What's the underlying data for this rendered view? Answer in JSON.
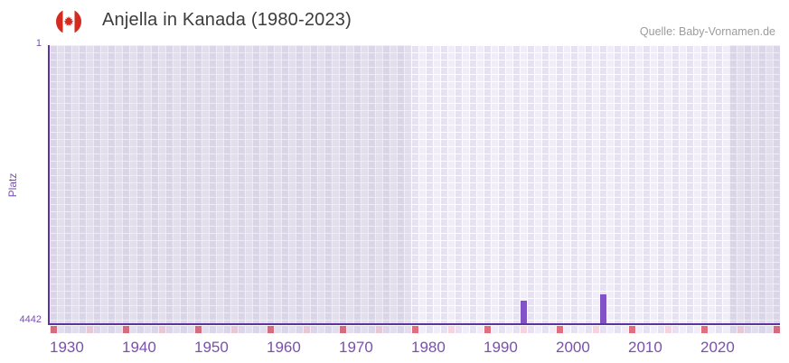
{
  "header": {
    "title": "Anjella in Kanada (1980-2023)",
    "flag_icon": "canada-flag",
    "source": "Quelle: Baby-Vornamen.de"
  },
  "chart_data": {
    "type": "bar",
    "title": "Anjella in Kanada (1980-2023)",
    "xlabel": "",
    "ylabel": "Platz",
    "y_axis": {
      "top_label": "1",
      "bottom_label": "4442",
      "min": 1,
      "max": 4442,
      "inverted": true
    },
    "x_axis": {
      "start_year": 1930,
      "end_year": 2030,
      "tick_years": [
        1930,
        1940,
        1950,
        1960,
        1970,
        1980,
        1990,
        2000,
        2010,
        2020
      ]
    },
    "highlight_range": {
      "from": 1980,
      "to": 2023
    },
    "bars": [
      {
        "year": 1995,
        "platz": 4083
      },
      {
        "year": 2006,
        "platz": 3982
      }
    ],
    "axis_accent_cells": {
      "red_years": [
        1930,
        1940,
        1950,
        1960,
        1970,
        1980,
        1990,
        2000,
        2010,
        2020,
        2030
      ],
      "pink_years": [
        1935,
        1945,
        1955,
        1965,
        1975,
        1985,
        1995,
        2005,
        2015,
        2025
      ]
    },
    "colors": {
      "bar": "#8153c7",
      "axis_line": "#5b34a0",
      "tick_text": "#7a50ae",
      "accent_red": "#e06e7e",
      "accent_pink": "#f5d4df",
      "grid_cell_a": "#e7e2f3",
      "grid_cell_b": "#f0edf9",
      "flag_red": "#d52b1e"
    },
    "legend": "none",
    "grid": true
  }
}
